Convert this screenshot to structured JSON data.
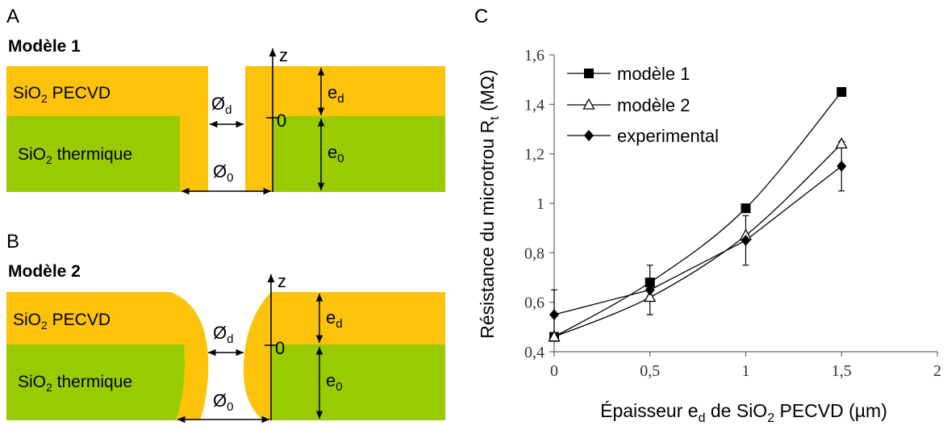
{
  "panels": {
    "a": {
      "label": "A",
      "title": "Modèle 1",
      "layer_top": {
        "prefix": "SiO",
        "sub": "2",
        "suffix": " PECVD"
      },
      "layer_bottom": {
        "prefix": "SiO",
        "sub": "2",
        "suffix": " thermique"
      },
      "z_axis": "z",
      "origin": "0",
      "d_diam": {
        "main": "Ø",
        "sub": "d"
      },
      "zero_diam": {
        "main": "Ø",
        "sub": "0"
      },
      "e_d": {
        "main": "e",
        "sub": "d"
      },
      "e_0": {
        "main": "e",
        "sub": "0"
      }
    },
    "b": {
      "label": "B",
      "title": "Modèle 2",
      "layer_top": {
        "prefix": "SiO",
        "sub": "2",
        "suffix": " PECVD"
      },
      "layer_bottom": {
        "prefix": "SiO",
        "sub": "2",
        "suffix": " thermique"
      },
      "z_axis": "z",
      "origin": "0",
      "d_diam": {
        "main": "Ø",
        "sub": "d"
      },
      "zero_diam": {
        "main": "Ø",
        "sub": "0"
      },
      "e_d": {
        "main": "e",
        "sub": "d"
      },
      "e_0": {
        "main": "e",
        "sub": "0"
      }
    },
    "c": {
      "label": "C"
    }
  },
  "colors": {
    "pecvd": "#fcc30a",
    "thermique": "#99cc00",
    "line": "#000000"
  },
  "chart_data": {
    "type": "line",
    "xlim": [
      0,
      2
    ],
    "ylim": [
      0.4,
      1.6
    ],
    "x_ticks": [
      "0",
      "0,5",
      "1",
      "1,5",
      "2"
    ],
    "y_ticks": [
      "0,4",
      "0,6",
      "0,8",
      "1",
      "1,2",
      "1,4",
      "1,6"
    ],
    "xlabel": {
      "a": "Épaisseur e",
      "sub1": "d",
      "b": " de SiO",
      "sub2": "2",
      "c": " PECVD (µm)"
    },
    "ylabel": {
      "a": "Résistance du microtrou R",
      "sub": "t",
      "b": " (MΩ)"
    },
    "legend_position": "top-left",
    "grid": false,
    "series": [
      {
        "name": "modèle 1",
        "marker": "square-filled",
        "x": [
          0,
          0.5,
          1,
          1.5
        ],
        "y": [
          0.46,
          0.68,
          0.98,
          1.45
        ]
      },
      {
        "name": "modèle 2",
        "marker": "triangle-open",
        "x": [
          0,
          0.5,
          1,
          1.5
        ],
        "y": [
          0.46,
          0.62,
          0.87,
          1.24
        ]
      },
      {
        "name": "experimental",
        "marker": "diamond-filled",
        "x": [
          0,
          0.5,
          1,
          1.5
        ],
        "y": [
          0.55,
          0.65,
          0.85,
          1.15
        ],
        "error": [
          0.1,
          0.1,
          0.1,
          0.1
        ]
      }
    ]
  }
}
